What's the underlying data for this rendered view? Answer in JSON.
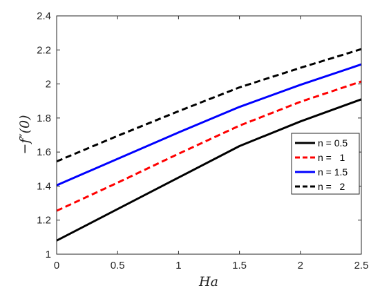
{
  "chart_data": {
    "type": "line",
    "xlabel": "Ha",
    "ylabel": "−f″(0)",
    "xlim": [
      0,
      2.5
    ],
    "ylim": [
      1,
      2.4
    ],
    "xticks": [
      0,
      0.5,
      1,
      1.5,
      2,
      2.5
    ],
    "yticks": [
      1,
      1.2,
      1.4,
      1.6,
      1.8,
      2,
      2.2,
      2.4
    ],
    "x": [
      0,
      0.5,
      1,
      1.5,
      2,
      2.5
    ],
    "grid": false,
    "legend_position": "right",
    "series": [
      {
        "name": "n = 0.5",
        "color": "#000000",
        "dash": "solid",
        "values": [
          1.08,
          1.265,
          1.45,
          1.635,
          1.78,
          1.91
        ]
      },
      {
        "name": "n =   1",
        "color": "#ff0000",
        "dash": "dashed",
        "values": [
          1.255,
          1.42,
          1.59,
          1.755,
          1.895,
          2.015
        ]
      },
      {
        "name": "n = 1.5",
        "color": "#0000ff",
        "dash": "solid",
        "values": [
          1.405,
          1.56,
          1.715,
          1.865,
          1.995,
          2.115
        ]
      },
      {
        "name": "n =   2",
        "color": "#000000",
        "dash": "dashed",
        "values": [
          1.545,
          1.695,
          1.84,
          1.98,
          2.095,
          2.205
        ]
      }
    ]
  }
}
